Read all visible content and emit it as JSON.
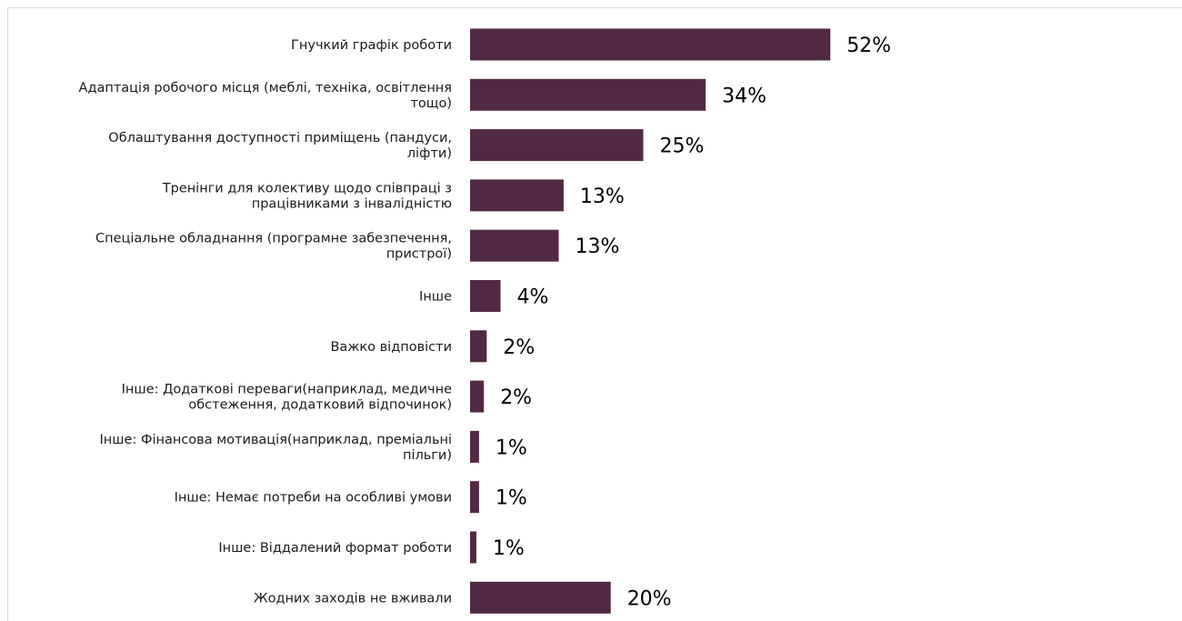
{
  "chart_data": {
    "type": "bar",
    "orientation": "horizontal",
    "categories": [
      [
        "Гнучкий графік роботи"
      ],
      [
        "Адаптація робочого місця (меблі, техніка, освітлення",
        "тощо)"
      ],
      [
        "Облаштування доступності приміщень (пандуси,",
        "ліфти)"
      ],
      [
        "Тренінги для колективу щодо співпраці з",
        "працівниками з інвалідністю"
      ],
      [
        "Спеціальне обладнання (програмне забезпечення,",
        "пристрої)"
      ],
      [
        "Інше"
      ],
      [
        "Важко відповісти"
      ],
      [
        "Інше: Додаткові переваги(наприклад, медичне",
        "обстеження, додатковий відпочинок)"
      ],
      [
        "Інше: Фінансова мотивація(наприклад, преміальні",
        "пільги)"
      ],
      [
        "Інше: Немає потреби на особливі умови"
      ],
      [
        "Інше: Віддалений формат роботи"
      ],
      [
        "Жодних заходів не вживали"
      ]
    ],
    "values": [
      52,
      34,
      25,
      13,
      13,
      4,
      2,
      2,
      1,
      1,
      1,
      20
    ],
    "value_labels": [
      "52%",
      "34%",
      "25%",
      "13%",
      "13%",
      "4%",
      "2%",
      "2%",
      "1%",
      "1%",
      "1%",
      "20%"
    ],
    "bar_widths_pct": [
      52,
      34,
      25,
      13.5,
      12.8,
      4.4,
      2.4,
      2.0,
      1.3,
      1.3,
      0.9,
      20.3
    ],
    "unit": "%",
    "bar_color": "#522944",
    "grid": false,
    "legend": "none"
  }
}
